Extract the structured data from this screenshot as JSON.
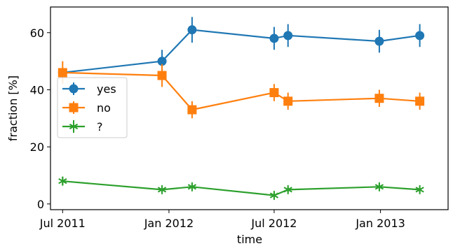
{
  "chart_data": {
    "type": "line",
    "title": "",
    "xlabel": "time",
    "ylabel": "fraction [%]",
    "x_ticks": [
      "Jul 2011",
      "Jan 2012",
      "Jul 2012",
      "Jan 2013"
    ],
    "x_tick_dates": [
      "2011-07-01",
      "2012-01-01",
      "2012-07-01",
      "2013-01-01"
    ],
    "x_range": [
      "2011-06-10",
      "2013-04-28"
    ],
    "y_ticks": [
      0,
      20,
      40,
      60
    ],
    "ylim": [
      -2,
      69
    ],
    "grid": false,
    "legend_position": "center-left",
    "series": [
      {
        "name": "yes",
        "color": "#1f77b4",
        "marker": "circle",
        "x": [
          "2011-07-01",
          "2011-12-20",
          "2012-02-10",
          "2012-07-01",
          "2012-07-25",
          "2012-12-30",
          "2013-03-10"
        ],
        "y": [
          46,
          50,
          61,
          58,
          59,
          57,
          59
        ],
        "yerr": [
          0,
          4,
          4.5,
          4,
          4,
          4,
          4
        ]
      },
      {
        "name": "no",
        "color": "#ff7f0e",
        "marker": "square",
        "x": [
          "2011-07-01",
          "2011-12-20",
          "2012-02-10",
          "2012-07-01",
          "2012-07-25",
          "2012-12-30",
          "2013-03-10"
        ],
        "y": [
          46,
          45,
          33,
          39,
          36,
          37,
          36
        ],
        "yerr": [
          4,
          4,
          3,
          3,
          3,
          3,
          3
        ]
      },
      {
        "name": "?",
        "color": "#2ca02c",
        "marker": "asterisk",
        "x": [
          "2011-07-01",
          "2011-12-20",
          "2012-02-10",
          "2012-07-01",
          "2012-07-25",
          "2012-12-30",
          "2013-03-10"
        ],
        "y": [
          8,
          5,
          6,
          3,
          5,
          6,
          5
        ],
        "yerr": [
          1.5,
          1,
          1,
          1,
          1,
          1,
          1
        ]
      }
    ]
  }
}
